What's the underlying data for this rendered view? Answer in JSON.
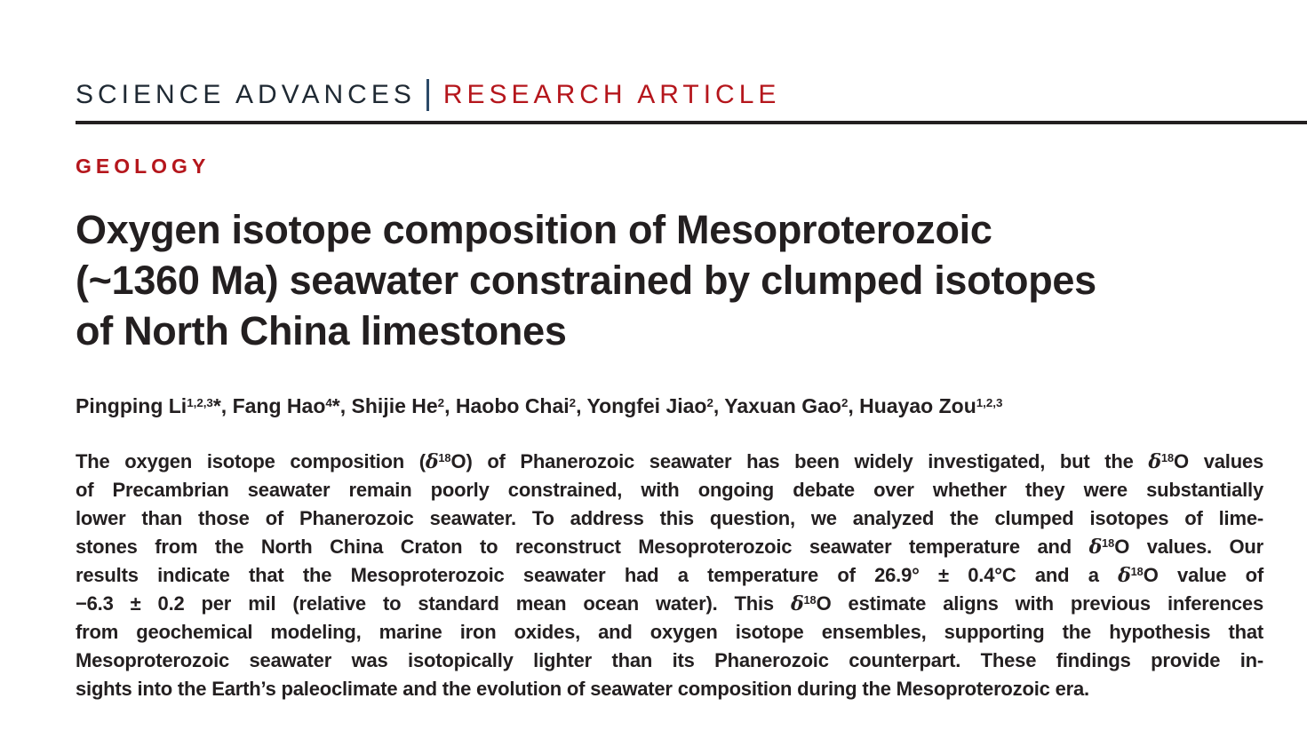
{
  "masthead": {
    "journal": "SCIENCE ADVANCES",
    "article_type": "RESEARCH ARTICLE"
  },
  "article": {
    "section": "GEOLOGY",
    "title_lines": [
      "Oxygen isotope composition of Mesoproterozoic",
      "(~1360 Ma) seawater constrained by clumped isotopes",
      "of North China limestones"
    ],
    "authors_line": "Pingping Li{1,2,3}*, Fang Hao{4}*, Shijie He{2}, Haobo Chai{2}, Yongfei Jiao{2}, Yaxuan Gao{2}, Huayao Zou{1,2,3}",
    "abstract_lines": [
      "The oxygen isotope composition (δ{18}O) of Phanerozoic seawater has been widely investigated, but the δ{18}O values",
      "of Precambrian seawater remain poorly constrained, with ongoing debate over whether they were substantially",
      "lower than those of Phanerozoic seawater. To address this question, we analyzed the clumped isotopes of lime-",
      "stones from the North China Craton to reconstruct Mesoproterozoic seawater temperature and δ{18}O values. Our",
      "results indicate that the Mesoproterozoic seawater had a temperature of 26.9° ± 0.4°C and a δ{18}O value of",
      "−6.3 ± 0.2 per mil (relative to standard mean ocean water). This δ{18}O estimate aligns with previous inferences",
      "from geochemical modeling, marine iron oxides, and oxygen isotope ensembles, supporting the hypothesis that",
      "Mesoproterozoic seawater was isotopically lighter than its Phanerozoic counterpart. These findings provide in-",
      "sights into the Earth’s paleoclimate and the evolution of seawater composition during the Mesoproterozoic era."
    ]
  },
  "colors": {
    "accent_red": "#b5161c",
    "masthead_text": "#1f2933",
    "divider_navy": "#2c4a68",
    "body_text": "#231f20"
  }
}
